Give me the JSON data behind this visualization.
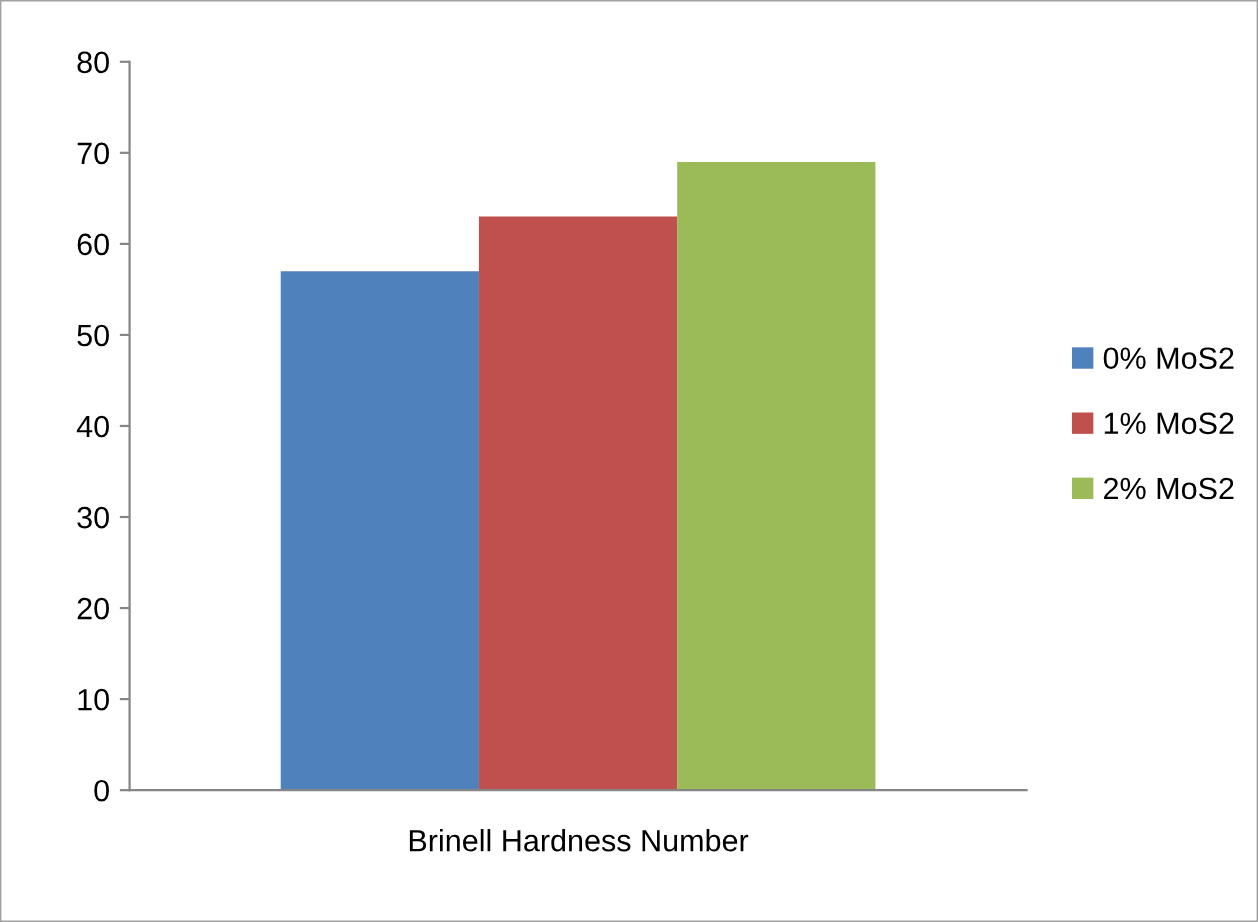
{
  "chart_data": {
    "type": "bar",
    "categories": [
      "Brinell Hardness Number"
    ],
    "series": [
      {
        "name": "0% MoS2",
        "color": "#4f81bd",
        "values": [
          57
        ]
      },
      {
        "name": "1% MoS2",
        "color": "#c0504d",
        "values": [
          63
        ]
      },
      {
        "name": "2% MoS2",
        "color": "#9bbb59",
        "values": [
          69
        ]
      }
    ],
    "ylim": [
      0,
      80
    ],
    "yticks": [
      0,
      10,
      20,
      30,
      40,
      50,
      60,
      70,
      80
    ],
    "grid": false,
    "legend": "right"
  }
}
